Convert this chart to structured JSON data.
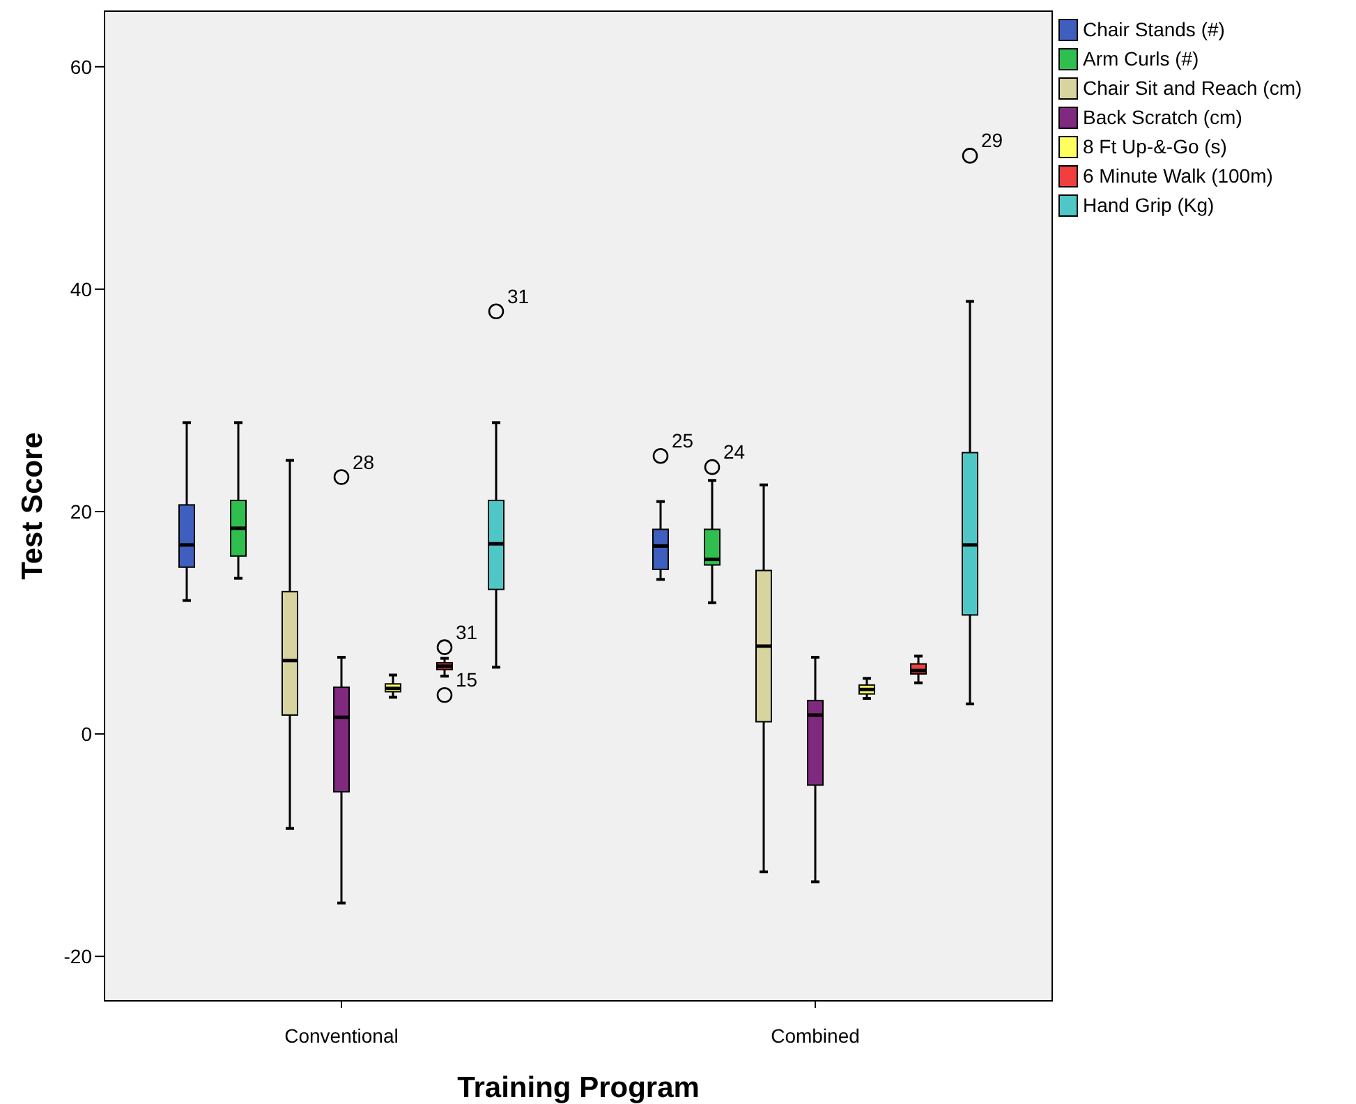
{
  "chart_data": {
    "type": "box",
    "xlabel": "Training Program",
    "ylabel": "Test Score",
    "categories": [
      "Conventional",
      "Combined"
    ],
    "ylim": [
      -24,
      65
    ],
    "yticks": [
      -20,
      0,
      20,
      40,
      60
    ],
    "grid": false,
    "legend": "top right",
    "series": [
      {
        "name": "Chair Stands (#)",
        "color": "#3f5fbf",
        "boxes": [
          {
            "low": 12,
            "q1": 15,
            "median": 17,
            "q3": 20.6,
            "high": 28
          },
          {
            "low": 13.9,
            "q1": 14.8,
            "median": 16.9,
            "q3": 18.4,
            "high": 20.9,
            "outliers": [
              25
            ]
          }
        ]
      },
      {
        "name": "Arm Curls (#)",
        "color": "#2fbf4f",
        "boxes": [
          {
            "low": 14,
            "q1": 16,
            "median": 18.5,
            "q3": 21,
            "high": 28
          },
          {
            "low": 11.8,
            "q1": 15.2,
            "median": 15.7,
            "q3": 18.4,
            "high": 22.8,
            "outliers": [
              24
            ]
          }
        ]
      },
      {
        "name": "Chair Sit and Reach (cm)",
        "color": "#d8d4a0",
        "boxes": [
          {
            "low": -8.5,
            "q1": 1.7,
            "median": 6.6,
            "q3": 12.8,
            "high": 24.6
          },
          {
            "low": -12.4,
            "q1": 1.1,
            "median": 7.9,
            "q3": 14.7,
            "high": 22.4
          }
        ]
      },
      {
        "name": "Back Scratch (cm)",
        "color": "#7f2a7f",
        "boxes": [
          {
            "low": -15.2,
            "q1": -5.2,
            "median": 1.5,
            "q3": 4.2,
            "high": 6.9,
            "outliers": [
              23.1
            ]
          },
          {
            "low": -13.3,
            "q1": -4.6,
            "median": 1.7,
            "q3": 3,
            "high": 6.9
          }
        ]
      },
      {
        "name": "8 Ft Up-&-Go (s)",
        "color": "#ffff5f",
        "boxes": [
          {
            "low": 3.3,
            "q1": 3.8,
            "median": 4.1,
            "q3": 4.5,
            "high": 5.3
          },
          {
            "low": 3.2,
            "q1": 3.6,
            "median": 4,
            "q3": 4.4,
            "high": 5
          }
        ]
      },
      {
        "name": "6 Minute Walk (100m)",
        "color": "#ef3f3f",
        "boxes": [
          {
            "low": 5.2,
            "q1": 5.8,
            "median": 6.1,
            "q3": 6.4,
            "high": 6.8,
            "outliers": [
              7.8,
              3.5
            ]
          },
          {
            "low": 4.6,
            "q1": 5.4,
            "median": 5.7,
            "q3": 6.3,
            "high": 7
          }
        ]
      },
      {
        "name": "Hand Grip (Kg)",
        "color": "#4fc7c7",
        "boxes": [
          {
            "low": 6,
            "q1": 13,
            "median": 17.1,
            "q3": 21,
            "high": 28,
            "outliers": [
              38
            ]
          },
          {
            "low": 2.7,
            "q1": 10.7,
            "median": 17,
            "q3": 25.3,
            "high": 38.9,
            "outliers": [
              52
            ]
          }
        ]
      }
    ],
    "annotations": [
      "28",
      "31",
      "15",
      "31",
      "25",
      "24",
      "29"
    ]
  }
}
